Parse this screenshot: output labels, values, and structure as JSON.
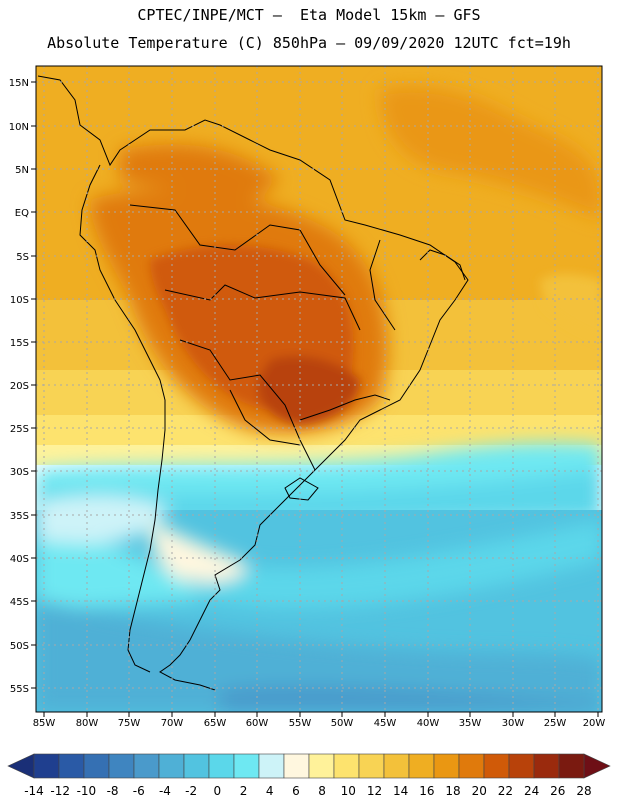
{
  "header": {
    "line1": "CPTEC/INPE/MCT —  Eta Model 15km — GFS",
    "line2": "Absolute Temperature (C) 850hPa — 09/09/2020 12UTC fct=19h"
  },
  "map": {
    "lat_labels": [
      "15N",
      "10N",
      "5N",
      "EQ",
      "5S",
      "10S",
      "15S",
      "20S",
      "25S",
      "30S",
      "35S",
      "40S",
      "45S",
      "50S",
      "55S"
    ],
    "lon_labels": [
      "85W",
      "80W",
      "75W",
      "70W",
      "65W",
      "60W",
      "55W",
      "50W",
      "45W",
      "40W",
      "35W",
      "30W",
      "25W",
      "20W"
    ]
  },
  "colorbar": {
    "labels": [
      "-14",
      "-12",
      "-10",
      "-8",
      "-6",
      "-4",
      "-2",
      "0",
      "2",
      "4",
      "6",
      "8",
      "10",
      "12",
      "14",
      "16",
      "18",
      "20",
      "22",
      "24",
      "26",
      "28"
    ],
    "colors": [
      "#1f3f8f",
      "#2a5aa6",
      "#3570b3",
      "#3f85c0",
      "#4a9acb",
      "#4fb0d6",
      "#52c3e0",
      "#5bd7ea",
      "#6ee8f2",
      "#cdf3f8",
      "#fff7df",
      "#fff29a",
      "#fde36e",
      "#f8d354",
      "#f3c13a",
      "#efae22",
      "#ea9712",
      "#e07a0c",
      "#d05a08",
      "#b8420a",
      "#9a2a0d",
      "#7a1a10"
    ],
    "under_color": "#1a2f77",
    "over_color": "#6e0f16"
  }
}
